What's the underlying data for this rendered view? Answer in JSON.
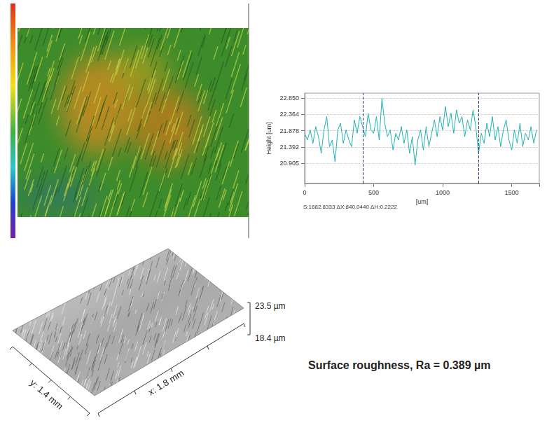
{
  "chart_data": {
    "type": "line",
    "x": [
      0,
      20,
      40,
      60,
      80,
      100,
      120,
      140,
      160,
      180,
      200,
      220,
      240,
      260,
      280,
      300,
      320,
      340,
      360,
      380,
      400,
      420,
      440,
      460,
      480,
      500,
      520,
      540,
      560,
      580,
      600,
      620,
      640,
      660,
      680,
      700,
      720,
      740,
      760,
      780,
      800,
      820,
      840,
      860,
      880,
      900,
      920,
      940,
      960,
      980,
      1000,
      1020,
      1040,
      1060,
      1080,
      1100,
      1120,
      1140,
      1160,
      1180,
      1200,
      1220,
      1240,
      1260,
      1280,
      1300,
      1320,
      1340,
      1360,
      1380,
      1400,
      1420,
      1440,
      1460,
      1480,
      1500,
      1520,
      1540,
      1560,
      1580,
      1600,
      1620,
      1640,
      1660,
      1680
    ],
    "values": [
      21.8,
      21.6,
      21.9,
      21.5,
      22.0,
      21.7,
      21.2,
      21.9,
      22.3,
      21.4,
      21.6,
      20.95,
      21.9,
      22.1,
      21.5,
      21.9,
      21.6,
      21.4,
      22.2,
      21.8,
      22.3,
      22.0,
      21.7,
      22.4,
      21.9,
      21.8,
      22.3,
      21.6,
      22.85,
      22.1,
      21.7,
      21.9,
      21.3,
      21.8,
      21.6,
      22.0,
      21.5,
      21.9,
      21.2,
      21.7,
      20.85,
      21.6,
      21.9,
      21.3,
      22.0,
      21.4,
      21.8,
      22.2,
      21.7,
      22.3,
      21.9,
      22.6,
      22.0,
      22.4,
      21.8,
      22.5,
      22.1,
      22.3,
      21.7,
      22.2,
      21.9,
      22.5,
      22.0,
      21.2,
      21.8,
      21.5,
      22.1,
      21.7,
      22.3,
      21.6,
      22.0,
      21.4,
      21.9,
      22.2,
      21.6,
      21.3,
      21.9,
      21.5,
      22.1,
      21.4,
      21.8,
      21.6,
      22.0,
      21.5,
      21.9
    ],
    "color": "#20b2b2",
    "xlim": [
      0,
      1700
    ],
    "xticks": [
      0,
      500,
      1000,
      1500
    ],
    "ylim": [
      20.3,
      23.0
    ],
    "yticks": [
      20.905,
      21.392,
      21.878,
      22.364,
      {
        "value": 22.85,
        "label": "22.850"
      }
    ],
    "x_label": "[um]",
    "y_label": "Height [um]",
    "grid": true,
    "vlines": [
      420,
      1260
    ],
    "footer": "S:1682.8333   ΔX:840.0440   ΔH:0.2222"
  },
  "surface_3d": {
    "x_label": "x: 1.8 mm",
    "y_label": "y: 1.4 mm",
    "z_top": "23.5 µm",
    "z_bottom": "18.4 µm"
  },
  "caption": "Surface roughness, Ra = 0.389 µm"
}
